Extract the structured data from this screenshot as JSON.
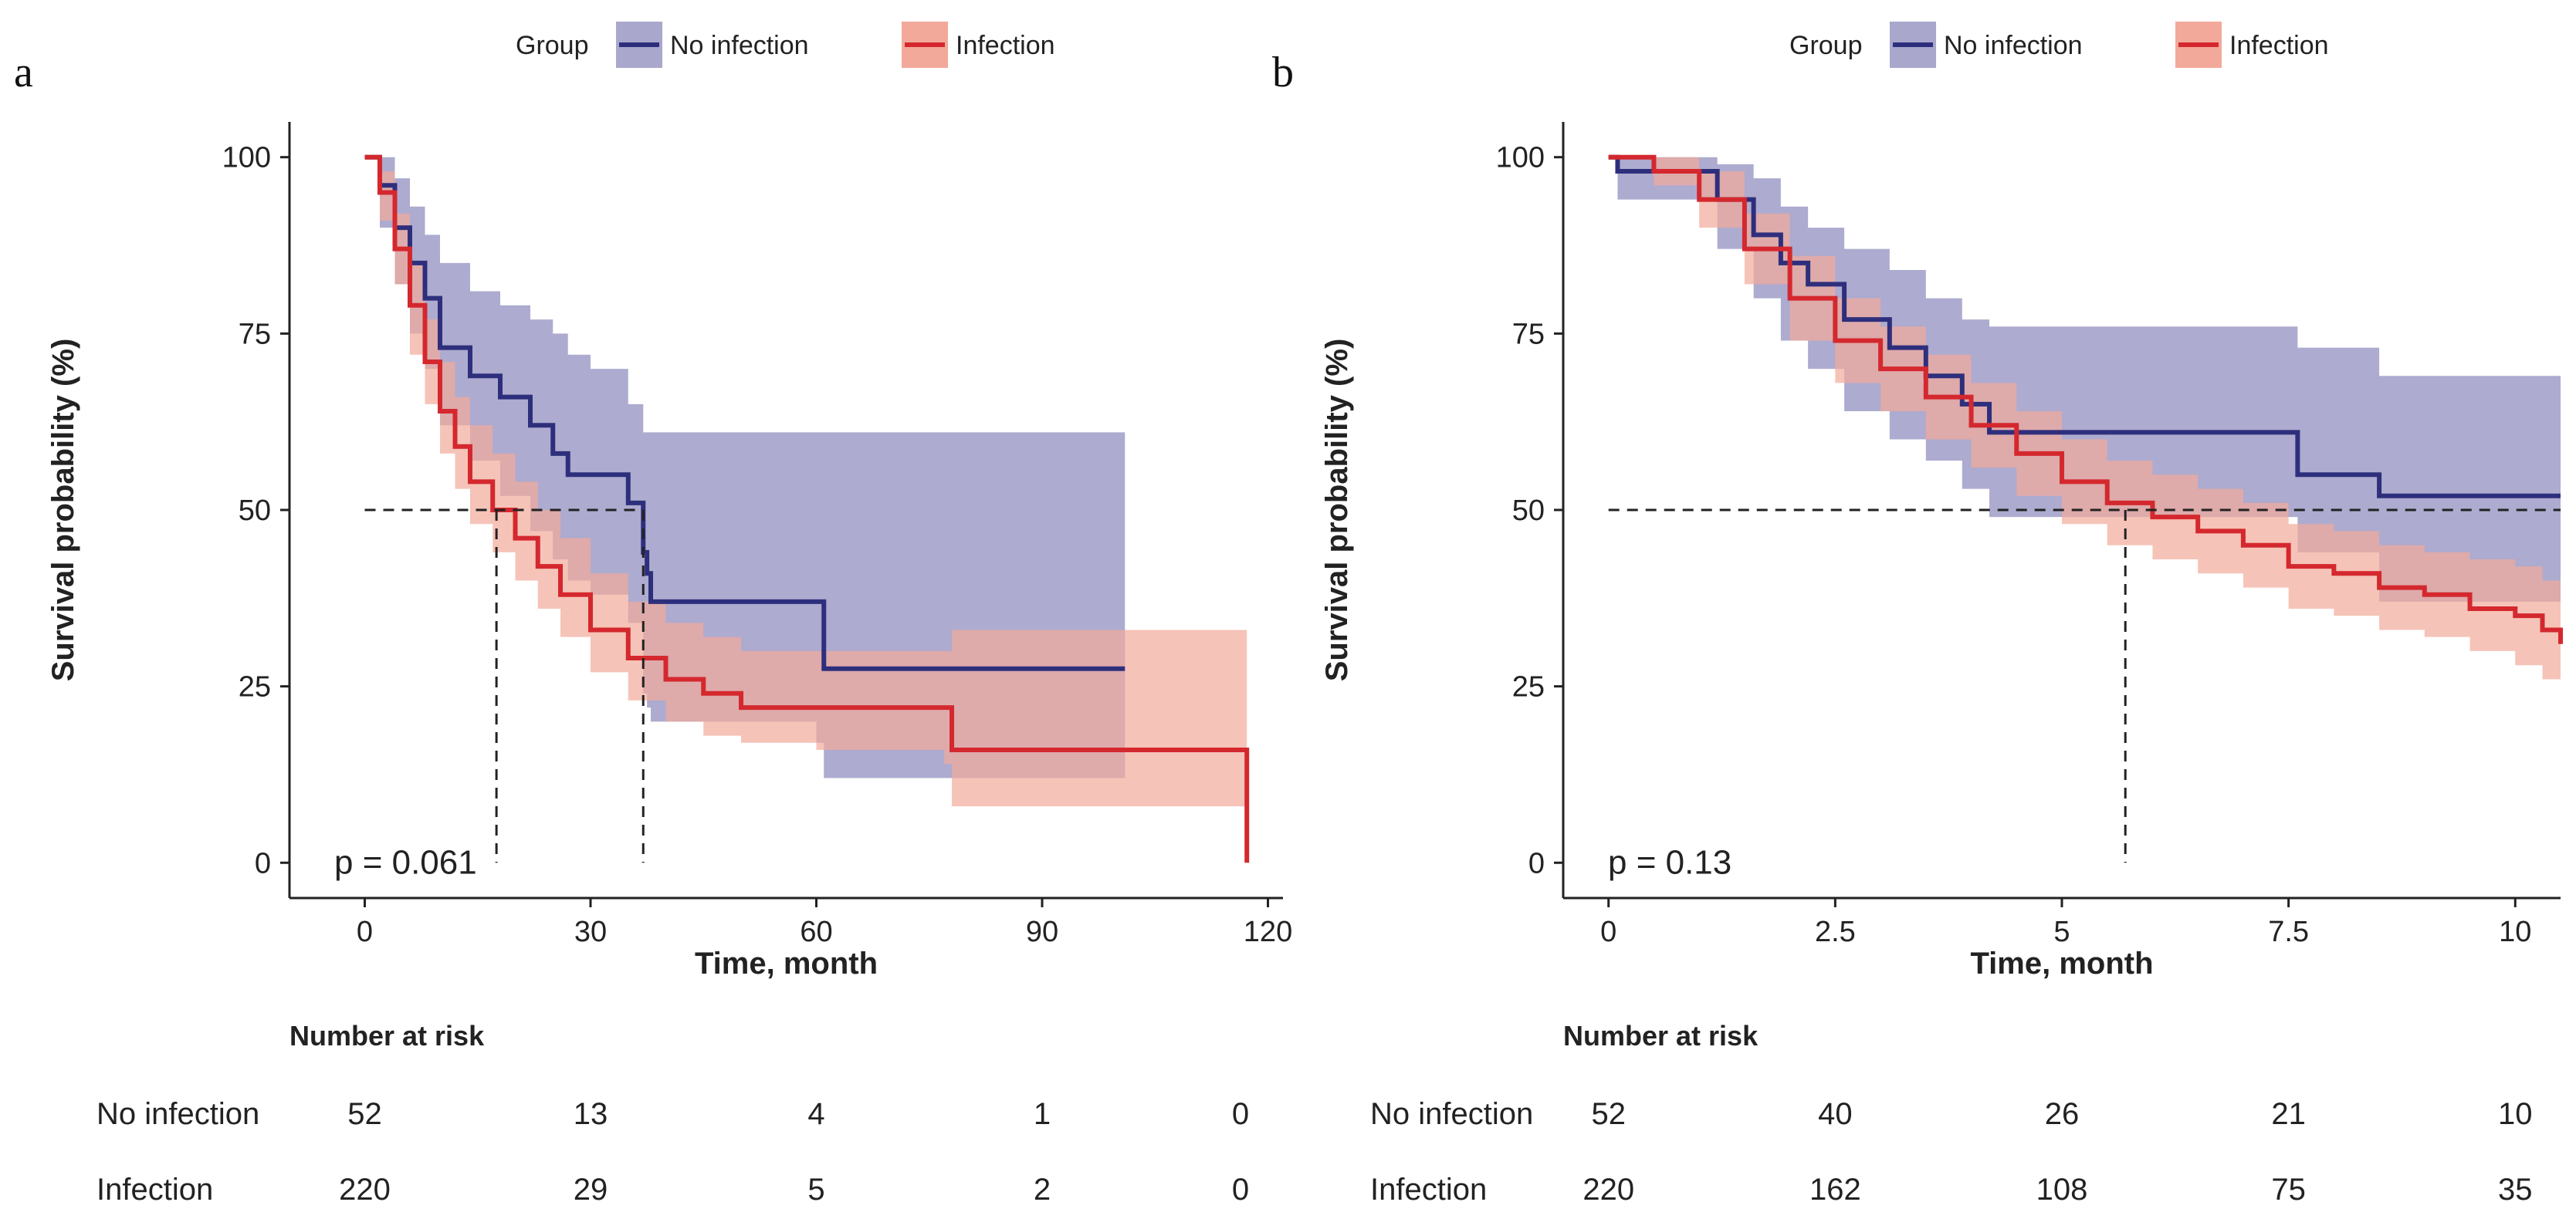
{
  "chart_data": [
    {
      "type": "line",
      "panel_label": "a",
      "legend": {
        "title": "Group",
        "entries": [
          "No infection",
          "Infection"
        ],
        "position": "top-center"
      },
      "colors": {
        "no_infection": "#2e2f7c",
        "no_infection_band": "#a9a7cc",
        "infection": "#d4282e",
        "infection_band": "#f2a99a"
      },
      "xlabel": "Time, month",
      "ylabel": "Survival probability (%)",
      "xlim": [
        -10,
        122
      ],
      "ylim": [
        -5,
        105
      ],
      "xticks": [
        0,
        30,
        60,
        90,
        120
      ],
      "xtick_labels": [
        "0",
        "30",
        "60",
        "90",
        "120"
      ],
      "yticks": [
        0,
        25,
        50,
        75,
        100
      ],
      "ytick_labels": [
        "0",
        "25",
        "50",
        "75",
        "100"
      ],
      "median_line": {
        "y": 50,
        "x_medians": [
          17.5,
          37
        ]
      },
      "pvalue": "p = 0.061",
      "series": [
        {
          "name": "No infection",
          "x": [
            0,
            2,
            4,
            6,
            8,
            10,
            14,
            18,
            22,
            25,
            27,
            30,
            35,
            37,
            37.5,
            38,
            60,
            61,
            101
          ],
          "values": [
            100,
            96,
            90,
            85,
            80,
            73,
            69,
            66,
            62,
            58,
            55,
            55,
            51,
            44,
            41,
            37,
            37,
            27.5,
            27.5
          ],
          "upper": [
            100,
            100,
            97,
            93,
            89,
            85,
            81,
            79,
            77,
            75,
            72,
            70,
            65,
            61,
            61,
            61,
            61,
            61,
            61
          ],
          "lower": [
            100,
            90,
            82,
            75,
            70,
            62,
            57,
            52,
            47,
            43,
            40,
            38,
            34,
            24,
            22,
            20,
            17,
            12,
            12
          ]
        },
        {
          "name": "Infection",
          "x": [
            0,
            2,
            4,
            6,
            8,
            10,
            12,
            14,
            17,
            20,
            23,
            26,
            30,
            35,
            40,
            45,
            50,
            60,
            70,
            77,
            78,
            117,
            117.2
          ],
          "values": [
            100,
            95,
            87,
            79,
            71,
            64,
            59,
            54,
            50,
            46,
            42,
            38,
            33,
            29,
            26,
            24,
            22,
            22,
            22,
            22,
            16,
            16,
            0
          ],
          "upper": [
            100,
            98,
            92,
            85,
            77,
            71,
            66,
            62,
            58,
            54,
            50,
            46,
            41,
            37,
            34,
            32,
            30,
            30,
            30,
            30,
            33,
            33,
            33
          ],
          "lower": [
            100,
            91,
            82,
            72,
            65,
            58,
            53,
            48,
            44,
            40,
            36,
            32,
            27,
            23,
            20,
            18,
            17,
            16,
            16,
            14,
            8,
            8,
            8
          ]
        }
      ],
      "risk_table": {
        "title": "Number at risk",
        "times": [
          0,
          30,
          60,
          90,
          120
        ],
        "rows": [
          {
            "label": "No infection",
            "values": [
              "52",
              "13",
              "4",
              "1",
              "0"
            ]
          },
          {
            "label": "Infection",
            "values": [
              "220",
              "29",
              "5",
              "2",
              "0"
            ]
          }
        ]
      }
    },
    {
      "type": "line",
      "panel_label": "b",
      "legend": {
        "title": "Group",
        "entries": [
          "No infection",
          "Infection"
        ],
        "position": "top-center"
      },
      "colors": {
        "no_infection": "#2e2f7c",
        "no_infection_band": "#a9a7cc",
        "infection": "#d4282e",
        "infection_band": "#f2a99a"
      },
      "xlabel": "Time, month",
      "ylabel": "Survival probability (%)",
      "xlim": [
        -0.5,
        10.5
      ],
      "ylim": [
        -5,
        105
      ],
      "xticks": [
        0,
        2.5,
        5,
        7.5,
        10
      ],
      "xtick_labels": [
        "0",
        "2.5",
        "5",
        "7.5",
        "10"
      ],
      "yticks": [
        0,
        25,
        50,
        75,
        100
      ],
      "ytick_labels": [
        "0",
        "25",
        "50",
        "75",
        "100"
      ],
      "median_line": {
        "y": 50,
        "x_medians": [
          5.7
        ]
      },
      "pvalue": "p = 0.13",
      "series": [
        {
          "name": "No infection",
          "x": [
            0,
            0.1,
            0.8,
            1.2,
            1.6,
            1.9,
            2.2,
            2.6,
            3.1,
            3.5,
            3.9,
            4.2,
            4.6,
            7.0,
            7.6,
            8.5,
            10.5
          ],
          "values": [
            100,
            98,
            98,
            94,
            89,
            85,
            82,
            77,
            73,
            69,
            65,
            61,
            61,
            61,
            55,
            52,
            52
          ],
          "upper": [
            100,
            100,
            100,
            99,
            97,
            93,
            90,
            87,
            84,
            80,
            77,
            76,
            76,
            76,
            73,
            69,
            69
          ],
          "lower": [
            100,
            94,
            94,
            87,
            80,
            74,
            70,
            64,
            60,
            57,
            53,
            49,
            49,
            49,
            44,
            37,
            37
          ]
        },
        {
          "name": "Infection",
          "x": [
            0,
            0.5,
            1,
            1.5,
            2,
            2.5,
            3,
            3.5,
            4,
            4.5,
            5,
            5.5,
            6,
            6.5,
            7,
            7.5,
            8,
            8.5,
            9,
            9.5,
            10,
            10.3,
            10.5
          ],
          "values": [
            100,
            98,
            94,
            87,
            80,
            74,
            70,
            66,
            62,
            58,
            54,
            51,
            49,
            47,
            45,
            42,
            41,
            39,
            38,
            36,
            35,
            33,
            31
          ],
          "upper": [
            100,
            100,
            98,
            92,
            86,
            80,
            76,
            72,
            68,
            64,
            60,
            57,
            55,
            53,
            51,
            48,
            47,
            45,
            44,
            43,
            42,
            40,
            39
          ],
          "lower": [
            100,
            96,
            90,
            82,
            74,
            68,
            64,
            60,
            56,
            52,
            48,
            45,
            43,
            41,
            39,
            36,
            35,
            33,
            32,
            30,
            28,
            26,
            25
          ]
        }
      ],
      "risk_table": {
        "title": "Number at risk",
        "times": [
          0,
          2.5,
          5,
          7.5,
          10
        ],
        "rows": [
          {
            "label": "No infection",
            "values": [
              "52",
              "40",
              "26",
              "21",
              "10"
            ]
          },
          {
            "label": "Infection",
            "values": [
              "220",
              "162",
              "108",
              "75",
              "35"
            ]
          }
        ]
      }
    }
  ]
}
